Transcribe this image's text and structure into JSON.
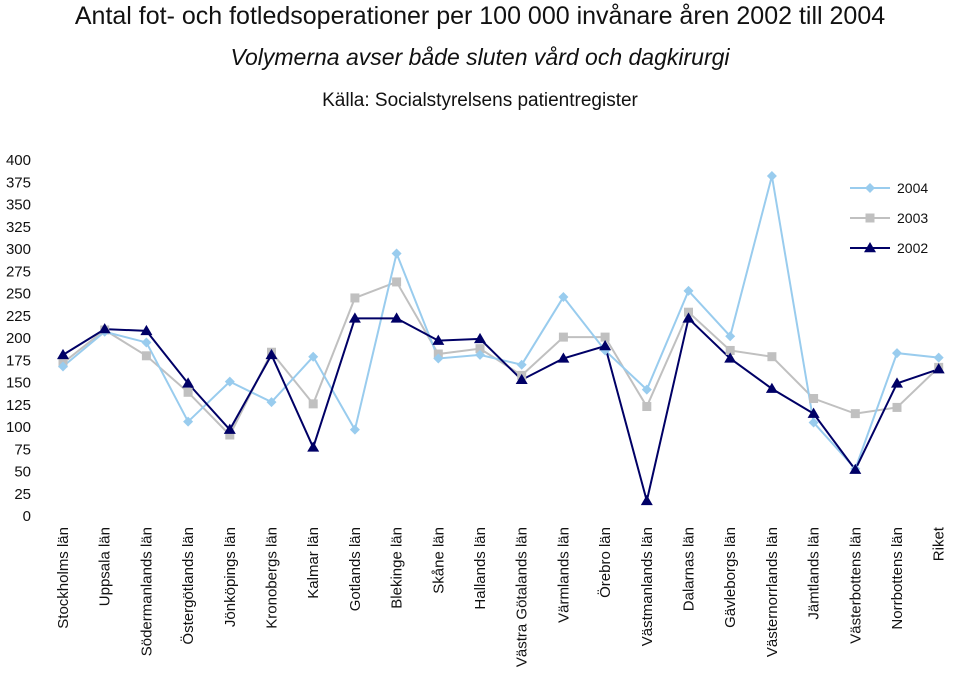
{
  "chart_data": {
    "type": "line",
    "title": "Antal fot- och fotledsoperationer per 100 000 invånare åren 2002 till 2004",
    "subtitle": "Volymerna avser både sluten vård och dagkirurgi",
    "source": "Källa: Socialstyrelsens patientregister",
    "xlabel": "",
    "ylabel": "",
    "ylim": [
      0,
      400
    ],
    "yticks": [
      0,
      25,
      50,
      75,
      100,
      125,
      150,
      175,
      200,
      225,
      250,
      275,
      300,
      325,
      350,
      375,
      400
    ],
    "grid": false,
    "legend_position": "top-right",
    "categories": [
      "Stockholms län",
      "Uppsala län",
      "Södermanlands län",
      "Östergötlands län",
      "Jönköpings län",
      "Kronobergs län",
      "Kalmar län",
      "Gotlands län",
      "Blekinge län",
      "Skåne län",
      "Hallands län",
      "Västra Götalands län",
      "Värmlands län",
      "Örebro län",
      "Västmanlands län",
      "Dalarnas län",
      "Gävleborgs län",
      "Västernorrlands län",
      "Jämtlands län",
      "Västerbottens län",
      "Norrbottens län",
      "Riket"
    ],
    "series": [
      {
        "name": "2004",
        "color": "#99ccee",
        "marker": "diamond",
        "values": [
          168,
          207,
          195,
          106,
          151,
          128,
          179,
          97,
          295,
          177,
          181,
          170,
          246,
          186,
          142,
          253,
          202,
          382,
          105,
          53,
          183,
          178
        ]
      },
      {
        "name": "2003",
        "color": "#c0c0c0",
        "marker": "square",
        "values": [
          172,
          209,
          180,
          139,
          91,
          184,
          126,
          245,
          263,
          182,
          188,
          158,
          201,
          201,
          123,
          229,
          186,
          179,
          132,
          115,
          122,
          167
        ]
      },
      {
        "name": "2002",
        "color": "#000066",
        "marker": "triangle",
        "values": [
          181,
          210,
          208,
          149,
          97,
          181,
          77,
          222,
          222,
          197,
          199,
          153,
          177,
          191,
          17,
          222,
          177,
          143,
          115,
          52,
          149,
          165
        ]
      }
    ]
  }
}
